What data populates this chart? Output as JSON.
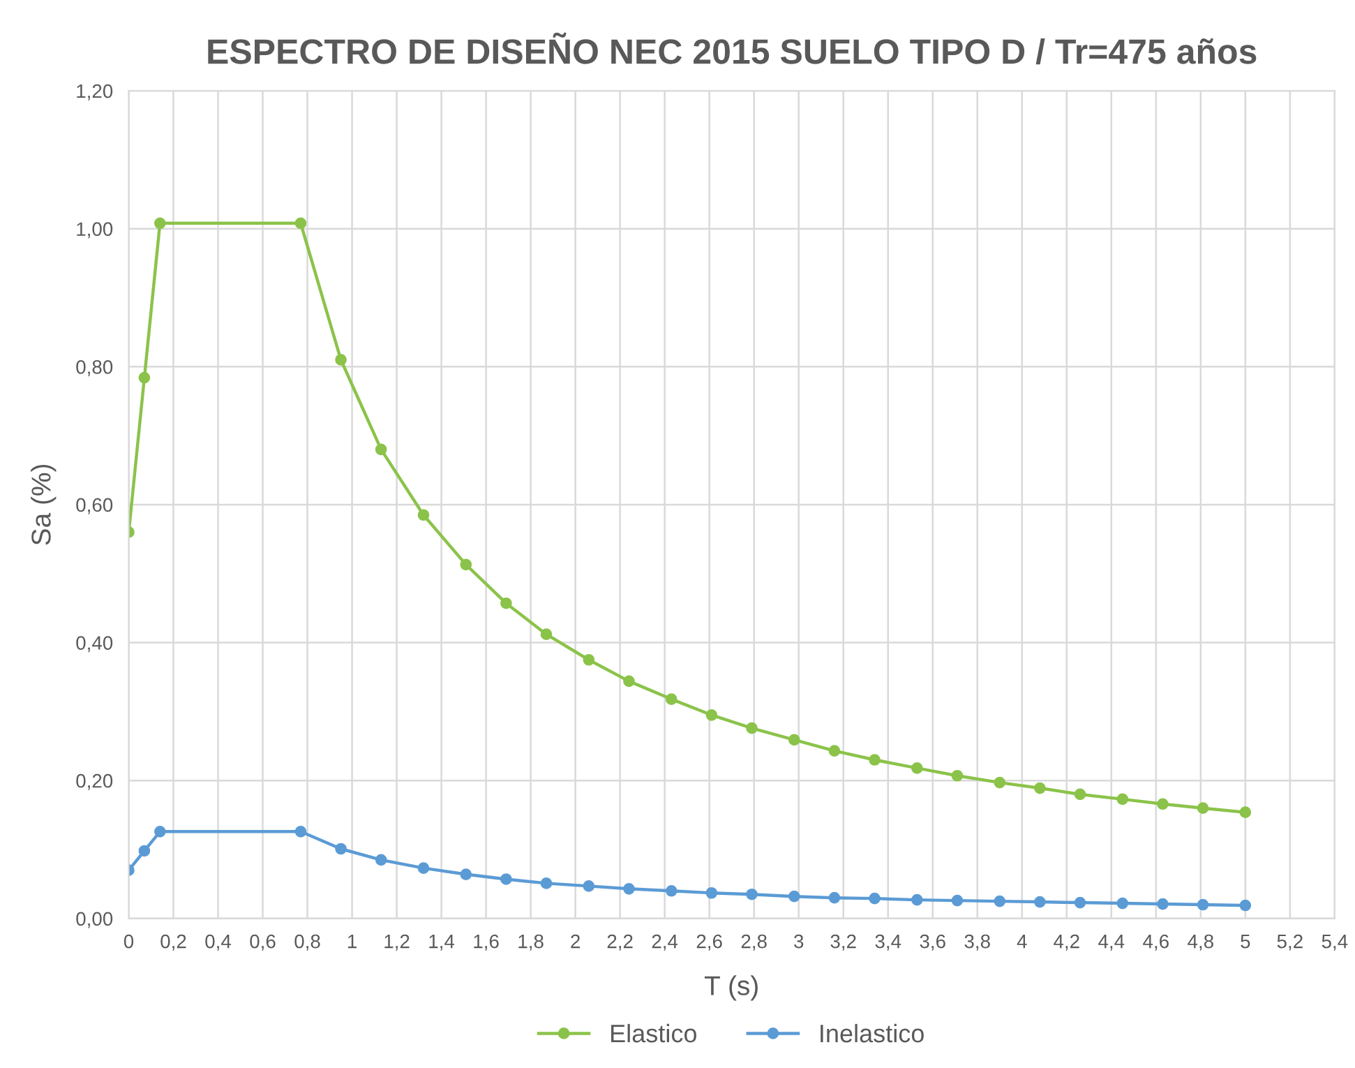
{
  "chart_data": {
    "type": "line",
    "title": "ESPECTRO DE DISEÑO NEC 2015 SUELO TIPO D / Tr=475 años",
    "xlabel": "T (s)",
    "ylabel": "Sa (%)",
    "x": [
      0,
      0.07,
      0.14,
      0.77,
      0.95,
      1.13,
      1.32,
      1.51,
      1.69,
      1.87,
      2.06,
      2.24,
      2.43,
      2.61,
      2.79,
      2.98,
      3.16,
      3.34,
      3.53,
      3.71,
      3.9,
      4.08,
      4.26,
      4.45,
      4.63,
      4.81,
      5.0
    ],
    "series": [
      {
        "name": "Elastico",
        "color": "#8bc34a",
        "values": [
          0.56,
          0.784,
          1.008,
          1.008,
          0.81,
          0.68,
          0.585,
          0.513,
          0.457,
          0.412,
          0.375,
          0.344,
          0.318,
          0.295,
          0.276,
          0.259,
          0.243,
          0.23,
          0.218,
          0.207,
          0.197,
          0.189,
          0.18,
          0.173,
          0.166,
          0.16,
          0.154
        ]
      },
      {
        "name": "Inelastico",
        "color": "#5b9bd5",
        "values": [
          0.07,
          0.098,
          0.126,
          0.126,
          0.101,
          0.085,
          0.073,
          0.064,
          0.057,
          0.051,
          0.047,
          0.043,
          0.04,
          0.037,
          0.035,
          0.032,
          0.03,
          0.029,
          0.027,
          0.026,
          0.025,
          0.024,
          0.023,
          0.022,
          0.021,
          0.02,
          0.019
        ]
      }
    ],
    "xlim": [
      0,
      5.4
    ],
    "xticks": [
      0,
      {
        "value": 0.2,
        "label": "0,2"
      },
      {
        "value": 0.4,
        "label": "0,4"
      },
      {
        "value": 0.6,
        "label": "0,6"
      },
      {
        "value": 0.8,
        "label": "0,8"
      },
      1,
      {
        "value": 1.2,
        "label": "1,2"
      },
      {
        "value": 1.4,
        "label": "1,4"
      },
      {
        "value": 1.6,
        "label": "1,6"
      },
      {
        "value": 1.8,
        "label": "1,8"
      },
      2,
      {
        "value": 2.2,
        "label": "2,2"
      },
      {
        "value": 2.4,
        "label": "2,4"
      },
      {
        "value": 2.6,
        "label": "2,6"
      },
      {
        "value": 2.8,
        "label": "2,8"
      },
      3,
      {
        "value": 3.2,
        "label": "3,2"
      },
      {
        "value": 3.4,
        "label": "3,4"
      },
      {
        "value": 3.6,
        "label": "3,6"
      },
      {
        "value": 3.8,
        "label": "3,8"
      },
      4,
      {
        "value": 4.2,
        "label": "4,2"
      },
      {
        "value": 4.4,
        "label": "4,4"
      },
      {
        "value": 4.6,
        "label": "4,6"
      },
      {
        "value": 4.8,
        "label": "4,8"
      },
      5,
      {
        "value": 5.2,
        "label": "5,2"
      },
      {
        "value": 5.4,
        "label": "5,4"
      }
    ],
    "ylim": [
      0,
      1.2
    ],
    "yticks": [
      {
        "value": 0,
        "label": "0,00"
      },
      {
        "value": 0.2,
        "label": "0,20"
      },
      {
        "value": 0.4,
        "label": "0,40"
      },
      {
        "value": 0.6,
        "label": "0,60"
      },
      {
        "value": 0.8,
        "label": "0,80"
      },
      {
        "value": 1.0,
        "label": "1,00"
      },
      {
        "value": 1.2,
        "label": "1,20"
      }
    ],
    "grid": true,
    "legend": "bottom",
    "marker": "circle",
    "line_style": "solid"
  }
}
